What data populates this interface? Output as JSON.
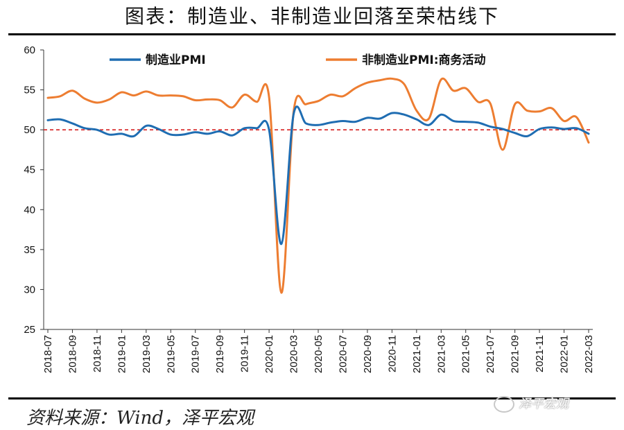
{
  "title": "图表：制造业、非制造业回落至荣枯线下",
  "source": "资料来源：Wind，泽平宏观",
  "watermark": "泽平宏观",
  "chart_data": {
    "type": "line",
    "ylim": [
      25,
      60
    ],
    "yticks": [
      25,
      30,
      35,
      40,
      45,
      50,
      55,
      60
    ],
    "x": [
      "2018-07",
      "2018-08",
      "2018-09",
      "2018-10",
      "2018-11",
      "2018-12",
      "2019-01",
      "2019-02",
      "2019-03",
      "2019-04",
      "2019-05",
      "2019-06",
      "2019-07",
      "2019-08",
      "2019-09",
      "2019-10",
      "2019-11",
      "2019-12",
      "2020-01",
      "2020-02",
      "2020-03",
      "2020-04",
      "2020-05",
      "2020-06",
      "2020-07",
      "2020-08",
      "2020-09",
      "2020-10",
      "2020-11",
      "2020-12",
      "2021-01",
      "2021-02",
      "2021-03",
      "2021-04",
      "2021-05",
      "2021-06",
      "2021-07",
      "2021-08",
      "2021-09",
      "2021-10",
      "2021-11",
      "2021-12",
      "2022-01",
      "2022-02",
      "2022-03"
    ],
    "xtick_labels": [
      "2018-07",
      "2018-09",
      "2018-11",
      "2019-01",
      "2019-03",
      "2019-05",
      "2019-07",
      "2019-09",
      "2019-11",
      "2020-01",
      "2020-03",
      "2020-05",
      "2020-07",
      "2020-09",
      "2020-11",
      "2021-01",
      "2021-03",
      "2021-05",
      "2021-07",
      "2021-09",
      "2021-11",
      "2022-01",
      "2022-03"
    ],
    "reference_line": {
      "value": 50,
      "color": "#d62020",
      "style": "dashed"
    },
    "series": [
      {
        "name": "制造业PMI",
        "color": "#1f6db2",
        "values": [
          51.2,
          51.3,
          50.8,
          50.2,
          50.0,
          49.4,
          49.5,
          49.2,
          50.5,
          50.1,
          49.4,
          49.4,
          49.7,
          49.5,
          49.8,
          49.3,
          50.2,
          50.2,
          50.0,
          35.7,
          52.0,
          50.8,
          50.6,
          50.9,
          51.1,
          51.0,
          51.5,
          51.4,
          52.1,
          51.9,
          51.3,
          50.6,
          51.9,
          51.1,
          51.0,
          50.9,
          50.4,
          50.1,
          49.6,
          49.2,
          50.1,
          50.3,
          50.1,
          50.2,
          49.5
        ]
      },
      {
        "name": "非制造业PMI:商务活动",
        "color": "#ed7d31",
        "values": [
          54.0,
          54.2,
          54.9,
          53.9,
          53.4,
          53.8,
          54.7,
          54.3,
          54.8,
          54.3,
          54.3,
          54.2,
          53.7,
          53.8,
          53.7,
          52.8,
          54.4,
          53.5,
          54.1,
          29.6,
          52.3,
          53.2,
          53.6,
          54.4,
          54.2,
          55.2,
          55.9,
          56.2,
          56.4,
          55.7,
          52.4,
          51.4,
          56.3,
          54.9,
          55.2,
          53.5,
          53.3,
          47.5,
          53.2,
          52.4,
          52.3,
          52.7,
          51.1,
          51.6,
          48.4
        ]
      }
    ]
  }
}
